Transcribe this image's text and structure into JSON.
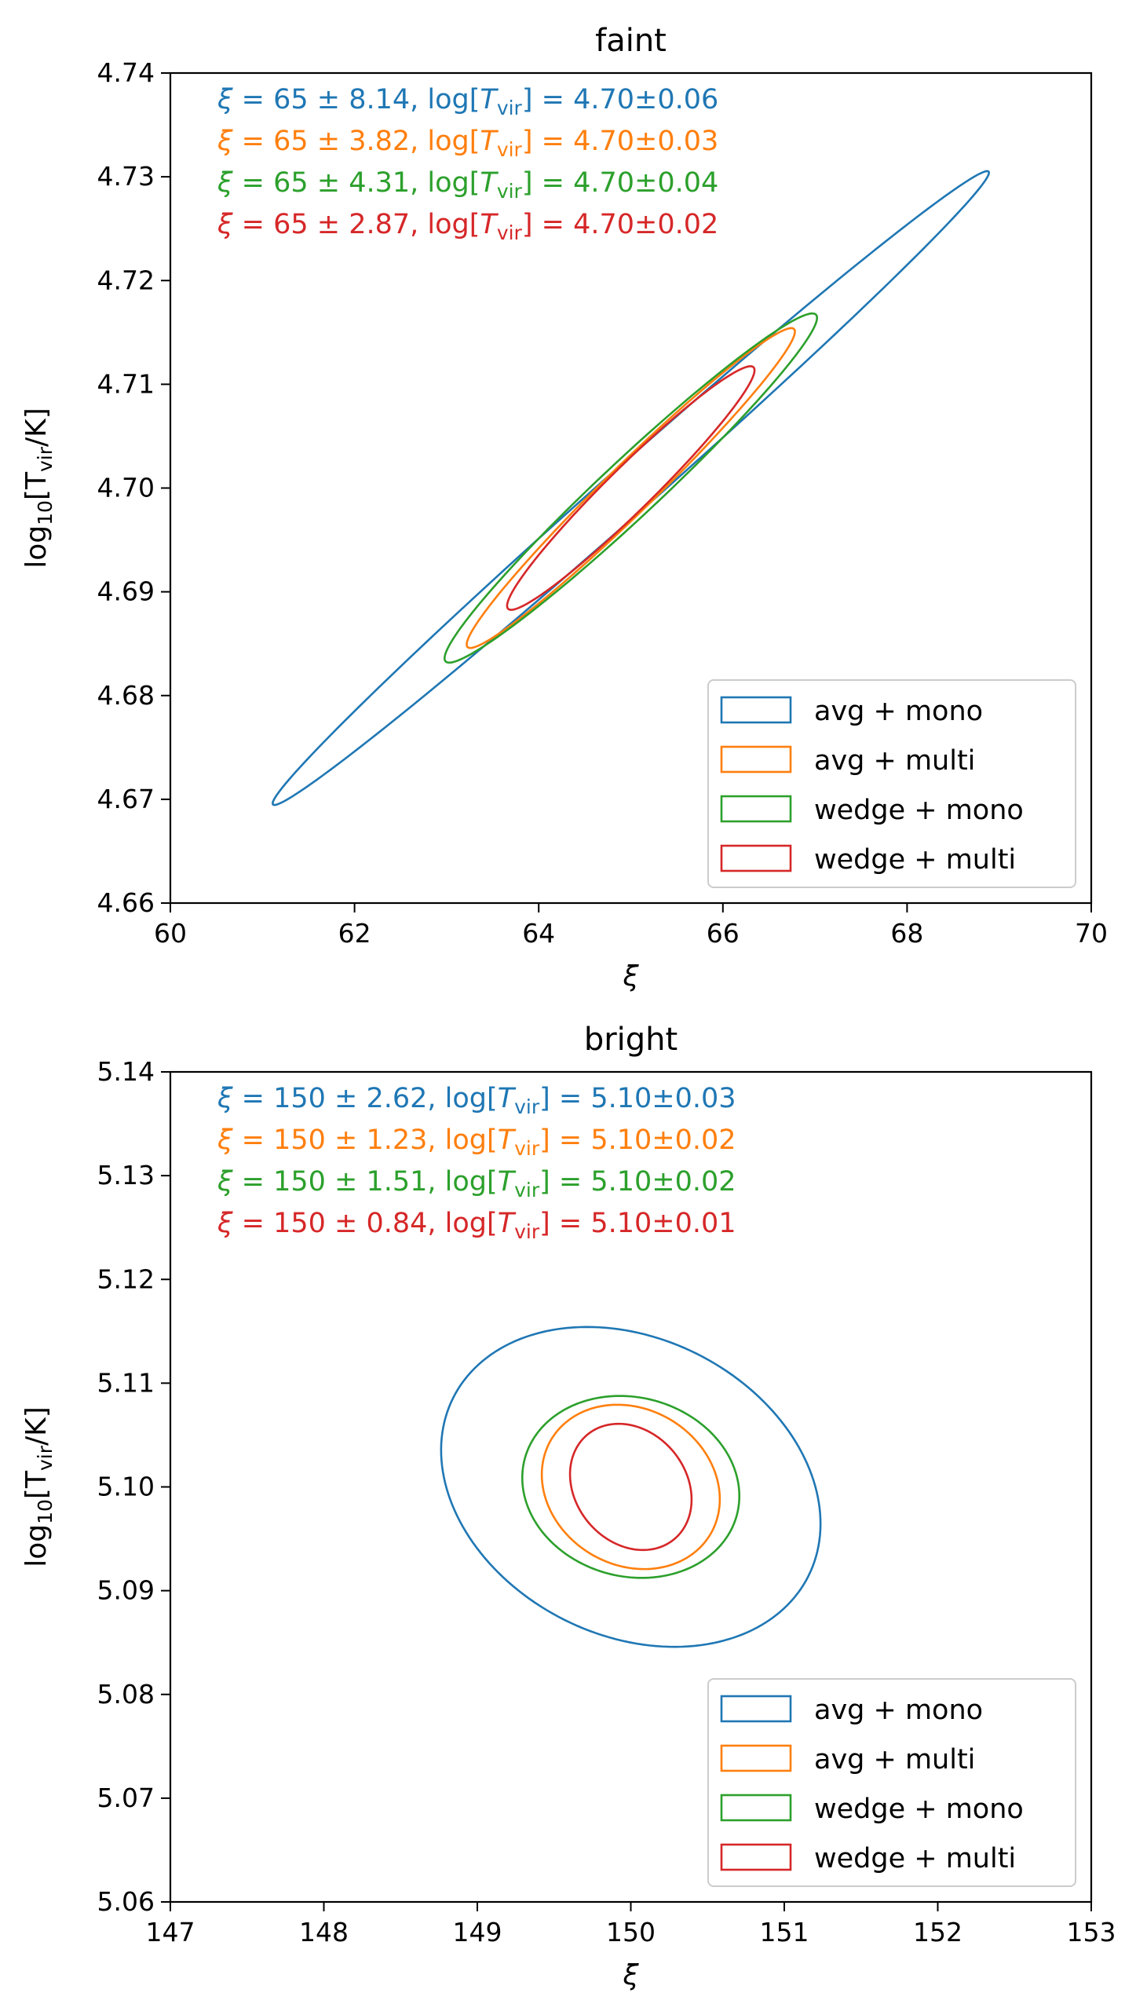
{
  "chart_data": [
    {
      "type": "contour",
      "title": "faint",
      "xlabel": "ξ",
      "ylabel": "log10[Tvir/K]",
      "ylabel_parts": {
        "prefix": "log",
        "sub1": "10",
        "mid": "[T",
        "sub2": "vir",
        "suffix": "/K]"
      },
      "xlim": [
        60,
        70
      ],
      "ylim": [
        4.66,
        4.74
      ],
      "xticks": [
        60,
        62,
        64,
        66,
        68,
        70
      ],
      "yticks": [
        4.66,
        4.67,
        4.68,
        4.69,
        4.7,
        4.71,
        4.72,
        4.73,
        4.74
      ],
      "xtick_labels": [
        "60",
        "62",
        "64",
        "66",
        "68",
        "70"
      ],
      "ytick_labels": [
        "4.66",
        "4.67",
        "4.68",
        "4.69",
        "4.70",
        "4.71",
        "4.72",
        "4.73",
        "4.74"
      ],
      "legend_location": "lower-right",
      "annotations": [
        {
          "xi": "65",
          "xi_err": "8.14",
          "logT": "4.70",
          "logT_err": "0.06"
        },
        {
          "xi": "65",
          "xi_err": "3.82",
          "logT": "4.70",
          "logT_err": "0.03"
        },
        {
          "xi": "65",
          "xi_err": "4.31",
          "logT": "4.70",
          "logT_err": "0.04"
        },
        {
          "xi": "65",
          "xi_err": "2.87",
          "logT": "4.70",
          "logT_err": "0.02"
        }
      ],
      "series": [
        {
          "name": "avg + mono",
          "color": "#1f77b4",
          "center": [
            65.0,
            4.7
          ],
          "sigma_x": 2.75,
          "sigma_y": 0.0216,
          "rho": 0.995
        },
        {
          "name": "avg + multi",
          "color": "#ff7f0e",
          "center": [
            65.0,
            4.7
          ],
          "sigma_x": 1.26,
          "sigma_y": 0.0109,
          "rho": 0.978
        },
        {
          "name": "wedge + mono",
          "color": "#2ca02c",
          "center": [
            65.0,
            4.7
          ],
          "sigma_x": 1.43,
          "sigma_y": 0.0119,
          "rho": 0.975
        },
        {
          "name": "wedge + multi",
          "color": "#d62728",
          "center": [
            65.0,
            4.7
          ],
          "sigma_x": 0.95,
          "sigma_y": 0.0083,
          "rho": 0.967
        }
      ]
    },
    {
      "type": "contour",
      "title": "bright",
      "xlabel": "ξ",
      "ylabel": "log10[Tvir/K]",
      "ylabel_parts": {
        "prefix": "log",
        "sub1": "10",
        "mid": "[T",
        "sub2": "vir",
        "suffix": "/K]"
      },
      "xlim": [
        147,
        153
      ],
      "ylim": [
        5.06,
        5.14
      ],
      "xticks": [
        147,
        148,
        149,
        150,
        151,
        152,
        153
      ],
      "yticks": [
        5.06,
        5.07,
        5.08,
        5.09,
        5.1,
        5.11,
        5.12,
        5.13,
        5.14
      ],
      "xtick_labels": [
        "147",
        "148",
        "149",
        "150",
        "151",
        "152",
        "153"
      ],
      "ytick_labels": [
        "5.06",
        "5.07",
        "5.08",
        "5.09",
        "5.10",
        "5.11",
        "5.12",
        "5.13",
        "5.14"
      ],
      "legend_location": "lower-right",
      "annotations": [
        {
          "xi": "150",
          "xi_err": "2.62",
          "logT": "5.10",
          "logT_err": "0.03"
        },
        {
          "xi": "150",
          "xi_err": "1.23",
          "logT": "5.10",
          "logT_err": "0.02"
        },
        {
          "xi": "150",
          "xi_err": "1.51",
          "logT": "5.10",
          "logT_err": "0.02"
        },
        {
          "xi": "150",
          "xi_err": "0.84",
          "logT": "5.10",
          "logT_err": "0.01"
        }
      ],
      "series": [
        {
          "name": "avg + mono",
          "color": "#1f77b4",
          "center": [
            150.0,
            5.1
          ],
          "sigma_x": 0.874,
          "sigma_y": 0.0109,
          "rho": -0.23
        },
        {
          "name": "avg + multi",
          "color": "#ff7f0e",
          "center": [
            150.0,
            5.1
          ],
          "sigma_x": 0.41,
          "sigma_y": 0.0056,
          "rho": -0.15
        },
        {
          "name": "wedge + mono",
          "color": "#2ca02c",
          "center": [
            150.0,
            5.1
          ],
          "sigma_x": 0.5,
          "sigma_y": 0.0062,
          "rho": -0.1
        },
        {
          "name": "wedge + multi",
          "color": "#d62728",
          "center": [
            150.0,
            5.1
          ],
          "sigma_x": 0.28,
          "sigma_y": 0.0043,
          "rho": -0.2
        }
      ]
    }
  ]
}
